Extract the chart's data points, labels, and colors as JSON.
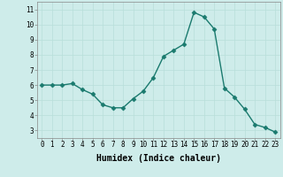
{
  "x": [
    0,
    1,
    2,
    3,
    4,
    5,
    6,
    7,
    8,
    9,
    10,
    11,
    12,
    13,
    14,
    15,
    16,
    17,
    18,
    19,
    20,
    21,
    22,
    23
  ],
  "y": [
    6.0,
    6.0,
    6.0,
    6.1,
    5.7,
    5.4,
    4.7,
    4.5,
    4.5,
    5.1,
    5.6,
    6.5,
    7.9,
    8.3,
    8.7,
    10.8,
    10.5,
    9.7,
    5.8,
    5.2,
    4.4,
    3.4,
    3.2,
    2.9
  ],
  "line_color": "#1a7a6e",
  "marker_color": "#1a7a6e",
  "bg_color": "#ceecea",
  "grid_color": "#b8deda",
  "xlabel": "Humidex (Indice chaleur)",
  "xlim": [
    -0.5,
    23.5
  ],
  "ylim": [
    2.5,
    11.5
  ],
  "yticks": [
    3,
    4,
    5,
    6,
    7,
    8,
    9,
    10,
    11
  ],
  "xticks": [
    0,
    1,
    2,
    3,
    4,
    5,
    6,
    7,
    8,
    9,
    10,
    11,
    12,
    13,
    14,
    15,
    16,
    17,
    18,
    19,
    20,
    21,
    22,
    23
  ],
  "tick_labelsize": 5.5,
  "xlabel_fontsize": 7,
  "marker_size": 2.5,
  "line_width": 1.0
}
